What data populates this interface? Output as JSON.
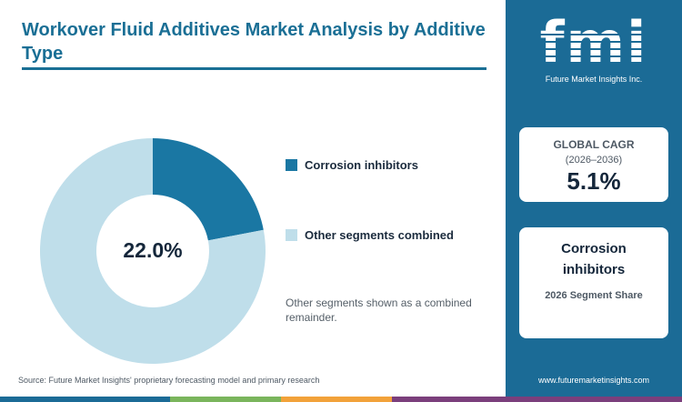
{
  "title": "Workover Fluid Additives Market Analysis by Additive Type",
  "chart_data": {
    "type": "pie",
    "donut": true,
    "center_label": "22.0%",
    "slices": [
      {
        "name": "Corrosion inhibitors",
        "value": 22.0,
        "color": "#1a77a3"
      },
      {
        "name": "Other segments combined",
        "value": 78.0,
        "color": "#bfdeea"
      }
    ],
    "legend_position": "right"
  },
  "legend": [
    {
      "label": "Corrosion inhibitors",
      "color": "#1a77a3"
    },
    {
      "label": "Other segments combined",
      "color": "#bfdeea"
    }
  ],
  "note": "Other segments shown as a combined remainder.",
  "source": "Source: Future Market Insights' proprietary forecasting model and primary research",
  "sidebar": {
    "logo_text": "fmi",
    "logo_tagline": "Future Market Insights Inc.",
    "cagr_label": "GLOBAL CAGR",
    "cagr_period": "(2026–2036)",
    "cagr_value": "5.1%",
    "segment_name": "Corrosion inhibitors",
    "segment_sub": "2026 Segment Share",
    "url": "www.futuremarketinsights.com"
  },
  "colors": {
    "brand": "#1b6b96",
    "title": "#1a6f95",
    "bar": [
      "#1b6b96",
      "#7ab55c",
      "#f2a23a",
      "#7b3f7c"
    ]
  }
}
